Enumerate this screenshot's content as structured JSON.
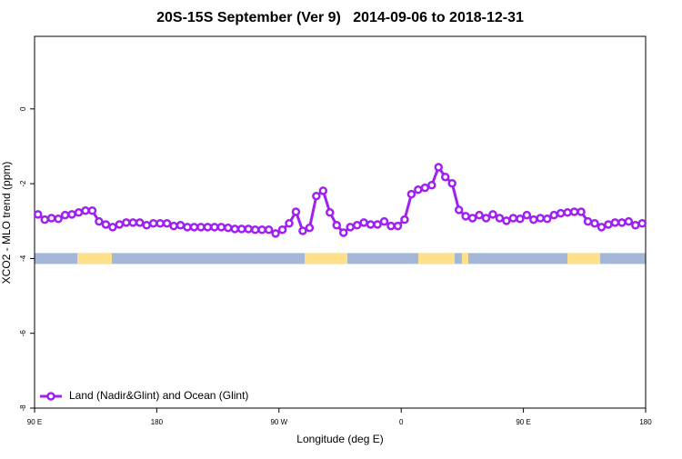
{
  "chart_data": {
    "type": "line",
    "title": "20S-15S September (Ver 9)   2014-09-06 to 2018-12-31",
    "x_label": "Longitude (deg E)",
    "y_label": "XCO2 - MLO trend (ppm)",
    "xlim": [
      90,
      540
    ],
    "ylim": [
      -8,
      1.94
    ],
    "xticks": [
      {
        "value": 90,
        "label": "90 E"
      },
      180,
      {
        "value": 270,
        "label": "90 W"
      },
      {
        "value": 360,
        "label": "0"
      },
      {
        "value": 450,
        "label": "90 E"
      },
      {
        "value": 540,
        "label": "180"
      }
    ],
    "yticks": [
      0,
      -2,
      -4,
      -6,
      -8
    ],
    "x": [
      92.5,
      97.5,
      102.5,
      107.5,
      112.5,
      117.5,
      122.5,
      127.5,
      132.5,
      137.5,
      142.5,
      147.5,
      152.5,
      157.5,
      162.5,
      167.5,
      172.5,
      177.5,
      182.5,
      187.5,
      192.5,
      197.5,
      202.5,
      207.5,
      212.5,
      217.5,
      222.5,
      227.5,
      232.5,
      237.5,
      242.5,
      247.5,
      252.5,
      257.5,
      262.5,
      267.5,
      272.5,
      277.5,
      282.5,
      287.5,
      292.5,
      297.5,
      302.5,
      307.5,
      312.5,
      317.5,
      322.5,
      327.5,
      332.5,
      337.5,
      342.5,
      347.5,
      352.5,
      357.5,
      362.5,
      367.5,
      372.5,
      377.5,
      382.5,
      387.5,
      392.5,
      397.5,
      402.5,
      407.5,
      412.5,
      417.5,
      422.5,
      427.5,
      432.5,
      437.5,
      442.5,
      447.5,
      452.5,
      457.5,
      462.5,
      467.5,
      472.5,
      477.5,
      482.5,
      487.5,
      492.5,
      497.5,
      502.5,
      507.5,
      512.5,
      517.5,
      522.5,
      527.5,
      532.5,
      537.5
    ],
    "series": [
      {
        "name": "Land (Nadir&Glint) and Ocean (Glint)",
        "color": "#a020f0",
        "values": [
          -2.82,
          -2.96,
          -2.92,
          -2.94,
          -2.84,
          -2.82,
          -2.77,
          -2.72,
          -2.72,
          -3.01,
          -3.09,
          -3.16,
          -3.09,
          -3.04,
          -3.04,
          -3.04,
          -3.11,
          -3.06,
          -3.06,
          -3.06,
          -3.13,
          -3.11,
          -3.16,
          -3.16,
          -3.16,
          -3.16,
          -3.16,
          -3.16,
          -3.18,
          -3.21,
          -3.21,
          -3.21,
          -3.23,
          -3.23,
          -3.23,
          -3.33,
          -3.23,
          -3.06,
          -2.75,
          -3.26,
          -3.18,
          -2.33,
          -2.19,
          -2.77,
          -3.11,
          -3.31,
          -3.16,
          -3.11,
          -3.04,
          -3.09,
          -3.09,
          -3.01,
          -3.13,
          -3.13,
          -2.96,
          -2.28,
          -2.16,
          -2.11,
          -2.04,
          -1.56,
          -1.82,
          -1.99,
          -2.7,
          -2.87,
          -2.92,
          -2.84,
          -2.92,
          -2.82,
          -2.92,
          -2.99,
          -2.92,
          -2.94,
          -2.84,
          -2.96,
          -2.92,
          -2.94,
          -2.84,
          -2.79,
          -2.77,
          -2.75,
          -2.75,
          -3.01,
          -3.06,
          -3.16,
          -3.09,
          -3.04,
          -3.04,
          -3.01,
          -3.11,
          -3.06
        ]
      }
    ],
    "mask": {
      "y": -4,
      "ocean_color": "#a3b8d8",
      "land_color": "#fedf8a",
      "land": [
        [
          121.5,
          146.9
        ],
        [
          288.9,
          320.4
        ],
        [
          372.6,
          399.4
        ],
        [
          404.7,
          409.4
        ],
        [
          482.4,
          506.5
        ]
      ]
    },
    "legend": "bottom-left"
  }
}
